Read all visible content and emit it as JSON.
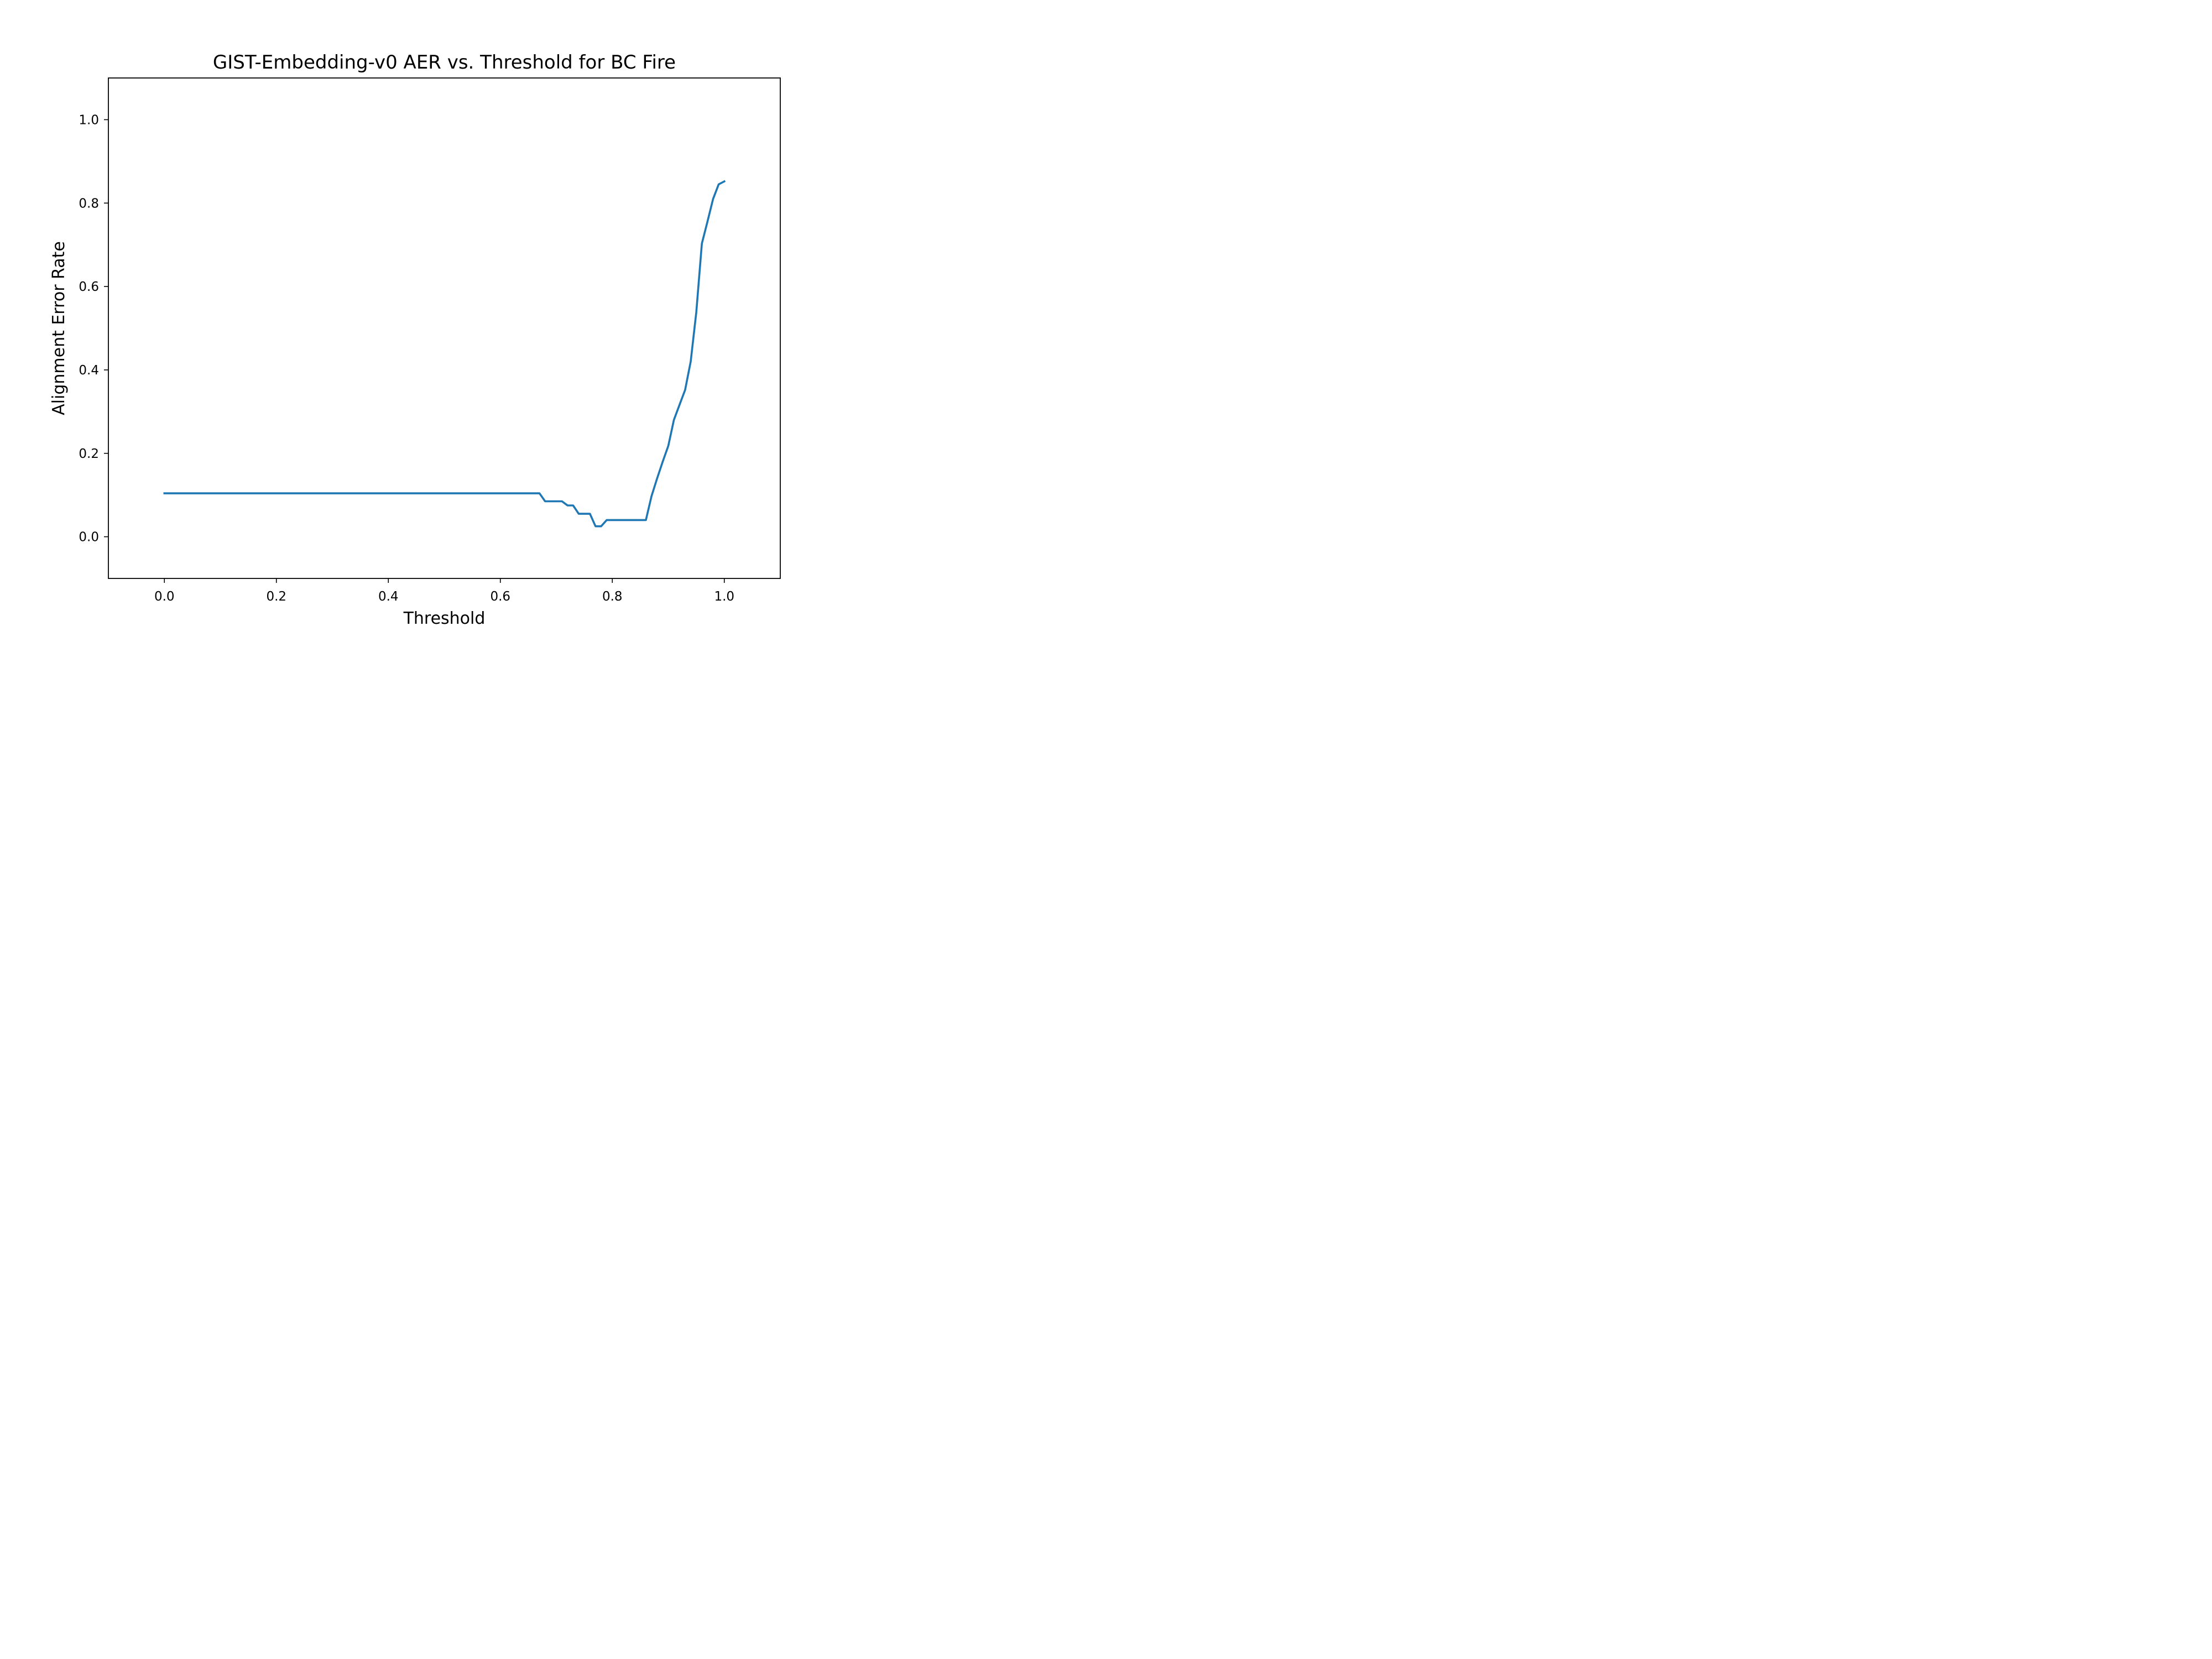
{
  "chart_data": {
    "type": "line",
    "title": "GIST-Embedding-v0 AER vs. Threshold for BC Fire",
    "xlabel": "Threshold",
    "ylabel": "Alignment Error Rate",
    "xlim": [
      -0.1,
      1.1
    ],
    "ylim": [
      -0.1,
      1.1
    ],
    "xticks": [
      0.0,
      0.2,
      0.4,
      0.6,
      0.8,
      1.0
    ],
    "xtick_labels": [
      "0.0",
      "0.2",
      "0.4",
      "0.6",
      "0.8",
      "1.0"
    ],
    "yticks": [
      0.0,
      0.2,
      0.4,
      0.6,
      0.8,
      1.0
    ],
    "ytick_labels": [
      "0.0",
      "0.2",
      "0.4",
      "0.6",
      "0.8",
      "1.0"
    ],
    "grid": false,
    "colors": {
      "series": "#1f77b4",
      "axes": "#000000",
      "background": "#ffffff"
    },
    "series": [
      {
        "x": [
          0.0,
          0.05,
          0.1,
          0.15,
          0.2,
          0.25,
          0.3,
          0.35,
          0.4,
          0.45,
          0.5,
          0.55,
          0.6,
          0.65,
          0.67,
          0.68,
          0.69,
          0.7,
          0.71,
          0.72,
          0.73,
          0.74,
          0.75,
          0.76,
          0.77,
          0.78,
          0.79,
          0.8,
          0.81,
          0.82,
          0.83,
          0.84,
          0.85,
          0.86,
          0.87,
          0.88,
          0.89,
          0.9,
          0.91,
          0.92,
          0.93,
          0.94,
          0.95,
          0.96,
          0.97,
          0.98,
          0.99,
          1.0
        ],
        "y": [
          0.104,
          0.104,
          0.104,
          0.104,
          0.104,
          0.104,
          0.104,
          0.104,
          0.104,
          0.104,
          0.104,
          0.104,
          0.104,
          0.104,
          0.104,
          0.085,
          0.085,
          0.085,
          0.085,
          0.075,
          0.075,
          0.055,
          0.055,
          0.055,
          0.025,
          0.025,
          0.04,
          0.04,
          0.04,
          0.04,
          0.04,
          0.04,
          0.04,
          0.04,
          0.097,
          0.14,
          0.18,
          0.218,
          0.28,
          0.316,
          0.352,
          0.42,
          0.538,
          0.703,
          0.756,
          0.81,
          0.845,
          0.852
        ]
      }
    ]
  }
}
